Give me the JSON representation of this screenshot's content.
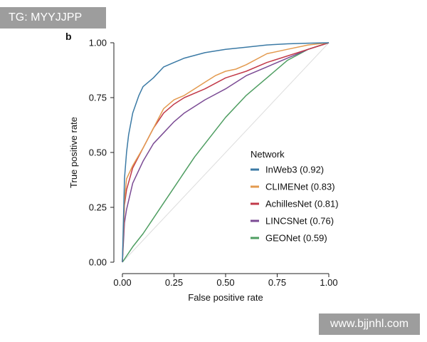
{
  "watermarks": {
    "top_left": "TG: MYYJJPP",
    "bottom_right": "www.bjjnhl.com"
  },
  "chart_data": {
    "type": "line",
    "panel_label": "b",
    "title": "",
    "xlabel": "False positive rate",
    "ylabel": "True positive rate",
    "xlim": [
      0,
      1
    ],
    "ylim": [
      0,
      1
    ],
    "x_ticks": [
      "0.00",
      "0.25",
      "0.50",
      "0.75",
      "1.00"
    ],
    "y_ticks": [
      "0.00",
      "0.25",
      "0.50",
      "0.75",
      "1.00"
    ],
    "legend_title": "Network",
    "legend_position": "right",
    "diagonal_color": "#dddddd",
    "series": [
      {
        "name": "InWeb3 (0.92)",
        "color": "#3b7aa5",
        "x": [
          0,
          0.01,
          0.02,
          0.03,
          0.05,
          0.08,
          0.1,
          0.15,
          0.2,
          0.25,
          0.3,
          0.4,
          0.5,
          0.6,
          0.7,
          0.8,
          0.9,
          1.0
        ],
        "y": [
          0,
          0.38,
          0.5,
          0.58,
          0.68,
          0.76,
          0.8,
          0.84,
          0.89,
          0.91,
          0.93,
          0.955,
          0.97,
          0.98,
          0.99,
          0.995,
          0.998,
          1.0
        ]
      },
      {
        "name": "CLIMENet (0.83)",
        "color": "#e39a4f",
        "x": [
          0,
          0.01,
          0.02,
          0.05,
          0.1,
          0.15,
          0.2,
          0.25,
          0.3,
          0.4,
          0.45,
          0.5,
          0.55,
          0.6,
          0.7,
          0.8,
          0.9,
          1.0
        ],
        "y": [
          0,
          0.28,
          0.38,
          0.44,
          0.52,
          0.61,
          0.7,
          0.74,
          0.76,
          0.82,
          0.85,
          0.87,
          0.88,
          0.9,
          0.95,
          0.97,
          0.99,
          1.0
        ]
      },
      {
        "name": "AchillesNet (0.81)",
        "color": "#c23a49",
        "x": [
          0,
          0.01,
          0.02,
          0.05,
          0.1,
          0.15,
          0.2,
          0.25,
          0.3,
          0.4,
          0.5,
          0.6,
          0.7,
          0.8,
          0.9,
          1.0
        ],
        "y": [
          0,
          0.26,
          0.33,
          0.43,
          0.52,
          0.61,
          0.68,
          0.72,
          0.75,
          0.79,
          0.84,
          0.87,
          0.91,
          0.94,
          0.97,
          1.0
        ]
      },
      {
        "name": "LINCSNet (0.76)",
        "color": "#7b4b94",
        "x": [
          0,
          0.01,
          0.02,
          0.05,
          0.1,
          0.15,
          0.2,
          0.25,
          0.3,
          0.4,
          0.5,
          0.6,
          0.7,
          0.8,
          0.9,
          1.0
        ],
        "y": [
          0,
          0.18,
          0.24,
          0.36,
          0.46,
          0.54,
          0.59,
          0.64,
          0.68,
          0.74,
          0.79,
          0.85,
          0.89,
          0.93,
          0.97,
          1.0
        ]
      },
      {
        "name": "GEONet (0.59)",
        "color": "#4f9e62",
        "x": [
          0,
          0.05,
          0.1,
          0.15,
          0.2,
          0.25,
          0.3,
          0.35,
          0.4,
          0.5,
          0.6,
          0.7,
          0.8,
          0.9,
          1.0
        ],
        "y": [
          0,
          0.07,
          0.13,
          0.2,
          0.27,
          0.34,
          0.41,
          0.48,
          0.54,
          0.66,
          0.76,
          0.84,
          0.92,
          0.97,
          1.0
        ]
      }
    ]
  }
}
